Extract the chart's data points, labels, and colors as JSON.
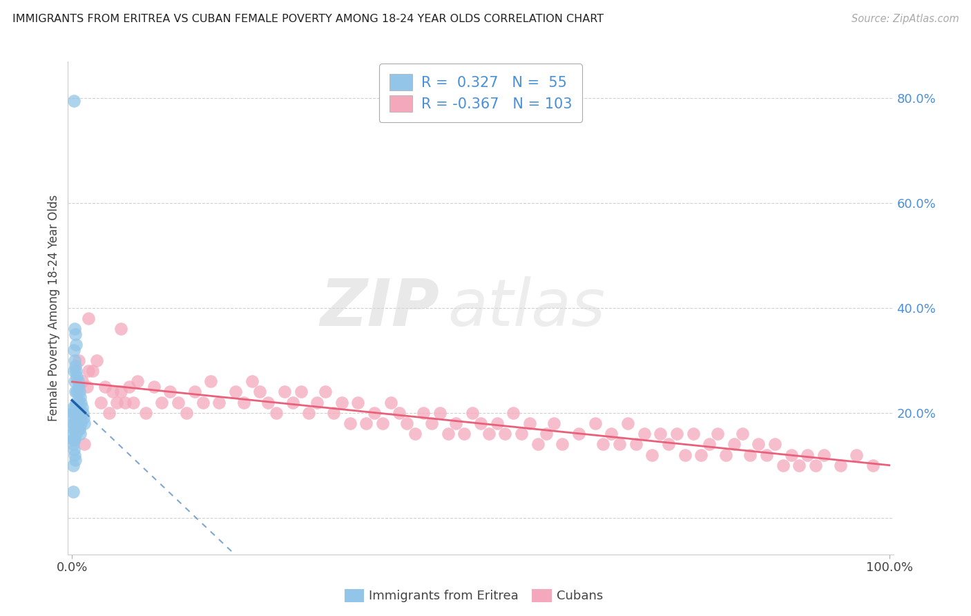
{
  "title": "IMMIGRANTS FROM ERITREA VS CUBAN FEMALE POVERTY AMONG 18-24 YEAR OLDS CORRELATION CHART",
  "source": "Source: ZipAtlas.com",
  "ylabel": "Female Poverty Among 18-24 Year Olds",
  "legend_eritrea_R": "0.327",
  "legend_eritrea_N": "55",
  "legend_cuban_R": "-0.367",
  "legend_cuban_N": "103",
  "legend_eritrea_label": "Immigrants from Eritrea",
  "legend_cuban_label": "Cubans",
  "eritrea_color": "#92c5e8",
  "cuban_color": "#f4a8bb",
  "eritrea_line_color": "#1a5fa8",
  "cuban_line_color": "#e8607a",
  "background_color": "#ffffff",
  "watermark_zip": "ZIP",
  "watermark_atlas": "atlas",
  "xlim_min": -0.005,
  "xlim_max": 1.005,
  "ylim_min": -0.07,
  "ylim_max": 0.87,
  "eritrea_x": [
    0.002,
    0.001,
    0.001,
    0.001,
    0.002,
    0.002,
    0.003,
    0.003,
    0.003,
    0.004,
    0.004,
    0.004,
    0.005,
    0.005,
    0.005,
    0.006,
    0.006,
    0.007,
    0.007,
    0.008,
    0.008,
    0.009,
    0.009,
    0.01,
    0.01,
    0.011,
    0.011,
    0.012,
    0.013,
    0.014,
    0.015,
    0.001,
    0.002,
    0.002,
    0.003,
    0.003,
    0.004,
    0.004,
    0.005,
    0.005,
    0.006,
    0.006,
    0.007,
    0.008,
    0.009,
    0.01,
    0.001,
    0.002,
    0.003,
    0.001,
    0.002,
    0.003,
    0.004,
    0.001,
    0.001
  ],
  "eritrea_y": [
    0.795,
    0.21,
    0.18,
    0.15,
    0.32,
    0.28,
    0.36,
    0.3,
    0.26,
    0.35,
    0.29,
    0.24,
    0.33,
    0.28,
    0.22,
    0.27,
    0.24,
    0.26,
    0.22,
    0.25,
    0.2,
    0.24,
    0.2,
    0.23,
    0.19,
    0.22,
    0.18,
    0.21,
    0.2,
    0.19,
    0.18,
    0.2,
    0.19,
    0.17,
    0.2,
    0.18,
    0.21,
    0.17,
    0.2,
    0.16,
    0.19,
    0.17,
    0.18,
    0.17,
    0.17,
    0.16,
    0.16,
    0.15,
    0.15,
    0.14,
    0.13,
    0.12,
    0.11,
    0.1,
    0.05
  ],
  "cuban_x": [
    0.008,
    0.012,
    0.018,
    0.02,
    0.025,
    0.03,
    0.035,
    0.04,
    0.045,
    0.05,
    0.055,
    0.06,
    0.065,
    0.07,
    0.075,
    0.08,
    0.09,
    0.1,
    0.11,
    0.12,
    0.13,
    0.14,
    0.15,
    0.16,
    0.17,
    0.18,
    0.2,
    0.21,
    0.22,
    0.23,
    0.24,
    0.25,
    0.26,
    0.27,
    0.28,
    0.29,
    0.3,
    0.31,
    0.32,
    0.33,
    0.34,
    0.35,
    0.36,
    0.37,
    0.38,
    0.39,
    0.4,
    0.41,
    0.42,
    0.43,
    0.44,
    0.45,
    0.46,
    0.47,
    0.48,
    0.49,
    0.5,
    0.51,
    0.52,
    0.53,
    0.54,
    0.55,
    0.56,
    0.57,
    0.58,
    0.59,
    0.6,
    0.62,
    0.64,
    0.65,
    0.66,
    0.67,
    0.68,
    0.69,
    0.7,
    0.71,
    0.72,
    0.73,
    0.74,
    0.75,
    0.76,
    0.77,
    0.78,
    0.79,
    0.8,
    0.81,
    0.82,
    0.83,
    0.84,
    0.85,
    0.86,
    0.87,
    0.88,
    0.89,
    0.9,
    0.91,
    0.92,
    0.94,
    0.96,
    0.98,
    0.02,
    0.06,
    0.015
  ],
  "cuban_y": [
    0.3,
    0.26,
    0.25,
    0.28,
    0.28,
    0.3,
    0.22,
    0.25,
    0.2,
    0.24,
    0.22,
    0.24,
    0.22,
    0.25,
    0.22,
    0.26,
    0.2,
    0.25,
    0.22,
    0.24,
    0.22,
    0.2,
    0.24,
    0.22,
    0.26,
    0.22,
    0.24,
    0.22,
    0.26,
    0.24,
    0.22,
    0.2,
    0.24,
    0.22,
    0.24,
    0.2,
    0.22,
    0.24,
    0.2,
    0.22,
    0.18,
    0.22,
    0.18,
    0.2,
    0.18,
    0.22,
    0.2,
    0.18,
    0.16,
    0.2,
    0.18,
    0.2,
    0.16,
    0.18,
    0.16,
    0.2,
    0.18,
    0.16,
    0.18,
    0.16,
    0.2,
    0.16,
    0.18,
    0.14,
    0.16,
    0.18,
    0.14,
    0.16,
    0.18,
    0.14,
    0.16,
    0.14,
    0.18,
    0.14,
    0.16,
    0.12,
    0.16,
    0.14,
    0.16,
    0.12,
    0.16,
    0.12,
    0.14,
    0.16,
    0.12,
    0.14,
    0.16,
    0.12,
    0.14,
    0.12,
    0.14,
    0.1,
    0.12,
    0.1,
    0.12,
    0.1,
    0.12,
    0.1,
    0.12,
    0.1,
    0.38,
    0.36,
    0.14
  ]
}
